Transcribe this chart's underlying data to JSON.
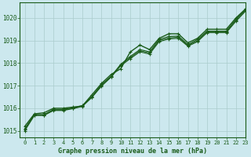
{
  "title": "Graphe pression niveau de la mer (hPa)",
  "xlim": [
    -0.5,
    23
  ],
  "ylim": [
    1014.7,
    1020.7
  ],
  "yticks": [
    1015,
    1016,
    1017,
    1018,
    1019,
    1020
  ],
  "xticks": [
    0,
    1,
    2,
    3,
    4,
    5,
    6,
    7,
    8,
    9,
    10,
    11,
    12,
    13,
    14,
    15,
    16,
    17,
    18,
    19,
    20,
    21,
    22,
    23
  ],
  "background_color": "#cce8ee",
  "grid_color": "#aacccc",
  "line_color": "#1a5c1a",
  "series": [
    [
      1015.2,
      1015.75,
      1015.8,
      1016.0,
      1016.0,
      1016.05,
      1016.1,
      1016.6,
      1017.1,
      1017.5,
      1017.75,
      1018.5,
      1018.8,
      1018.6,
      1019.1,
      1019.3,
      1019.3,
      1018.9,
      1019.1,
      1019.5,
      1019.5,
      1019.5,
      1020.0,
      1020.4
    ],
    [
      1015.1,
      1015.72,
      1015.72,
      1015.95,
      1015.95,
      1016.02,
      1016.12,
      1016.52,
      1017.05,
      1017.42,
      1017.95,
      1018.3,
      1018.6,
      1018.5,
      1019.05,
      1019.18,
      1019.2,
      1018.82,
      1019.05,
      1019.42,
      1019.42,
      1019.42,
      1019.95,
      1020.37
    ],
    [
      1015.05,
      1015.7,
      1015.7,
      1015.92,
      1015.92,
      1016.0,
      1016.1,
      1016.5,
      1017.02,
      1017.4,
      1017.92,
      1018.25,
      1018.55,
      1018.45,
      1019.0,
      1019.12,
      1019.15,
      1018.78,
      1019.0,
      1019.38,
      1019.38,
      1019.38,
      1019.9,
      1020.33
    ],
    [
      1015.0,
      1015.68,
      1015.68,
      1015.9,
      1015.9,
      1015.98,
      1016.08,
      1016.48,
      1016.98,
      1017.38,
      1017.88,
      1018.2,
      1018.5,
      1018.4,
      1018.95,
      1019.07,
      1019.1,
      1018.75,
      1018.95,
      1019.35,
      1019.35,
      1019.35,
      1019.85,
      1020.3
    ]
  ]
}
